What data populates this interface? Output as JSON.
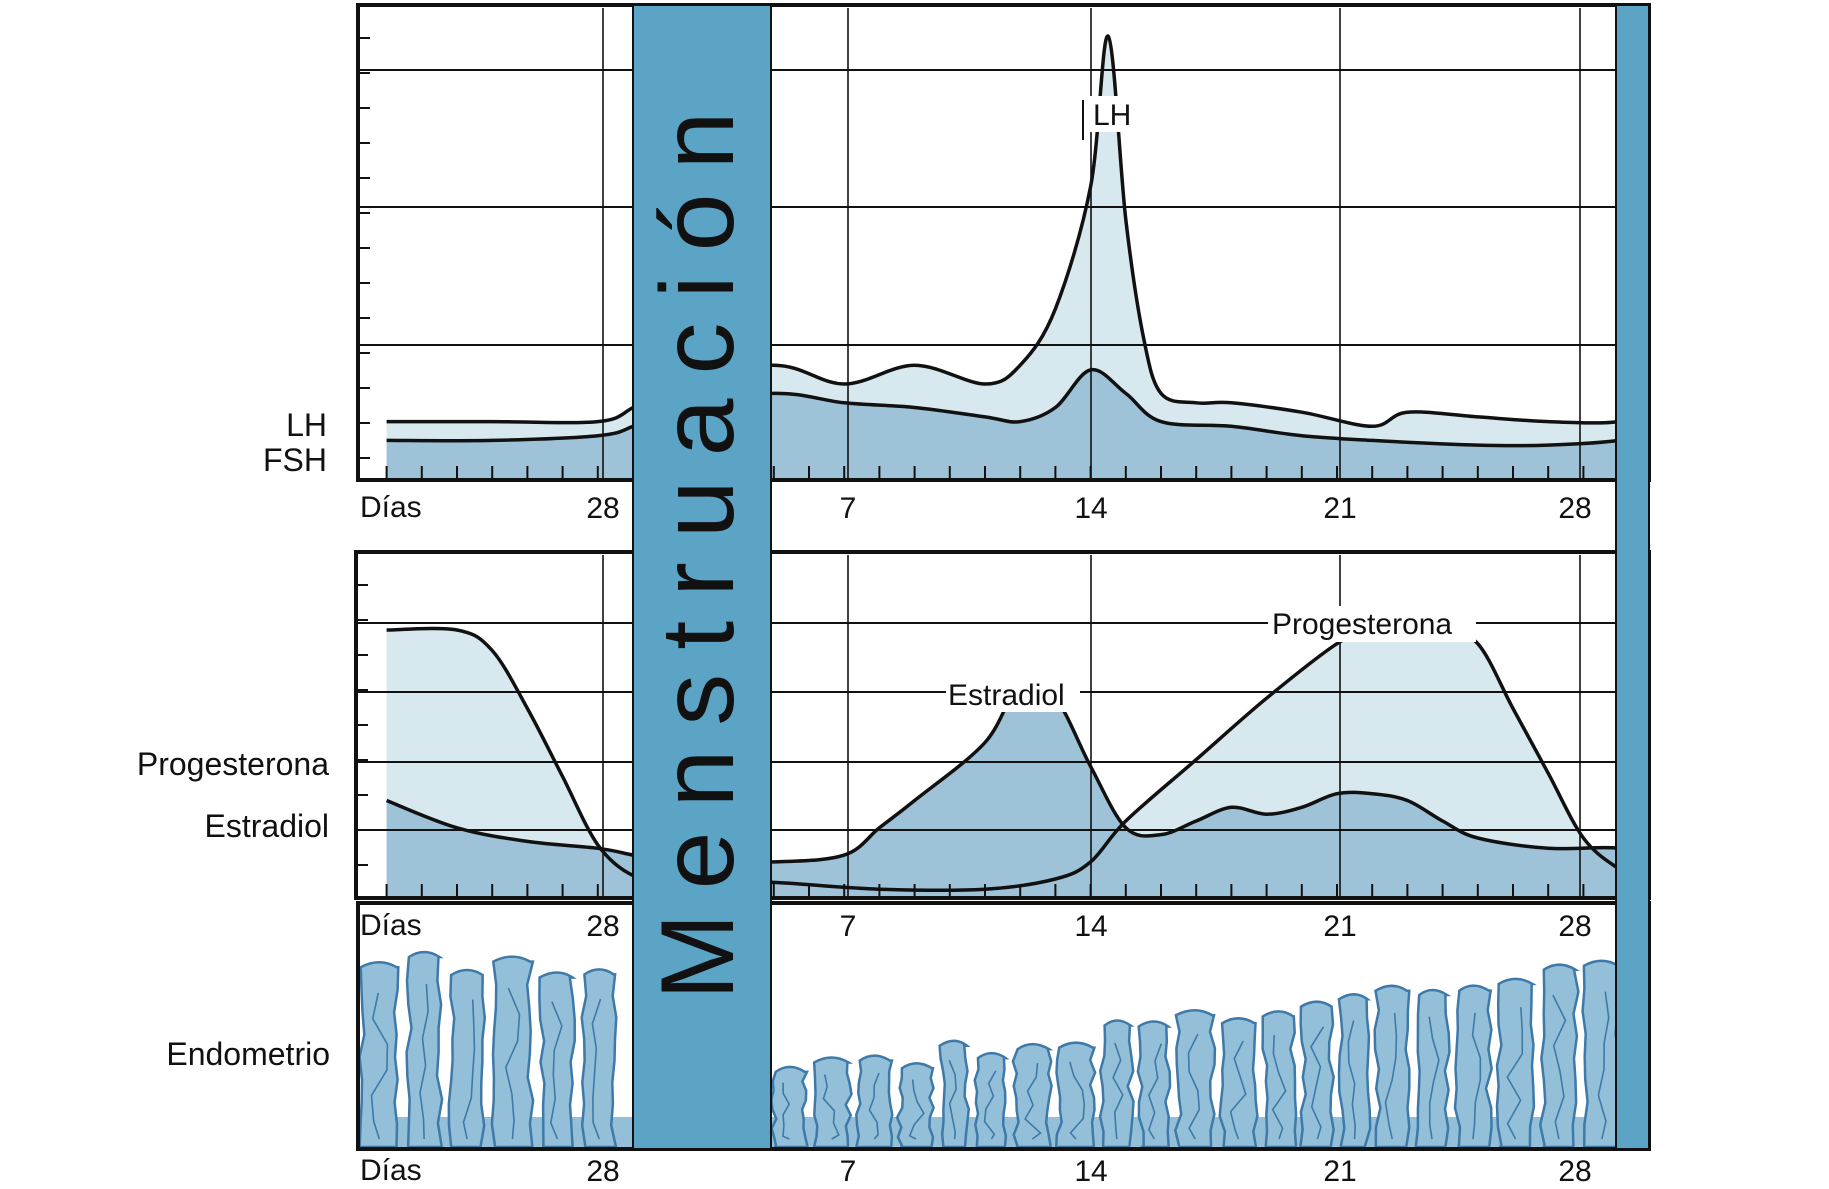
{
  "title": "",
  "menstruation_label": "Menstruación",
  "days_label": "Días",
  "day_ticks": [
    "28",
    "7",
    "14",
    "21",
    "28"
  ],
  "panels": {
    "gonadotropins": {
      "side_labels": [
        "LH",
        "FSH"
      ],
      "curve_labels": [
        "LH"
      ]
    },
    "ovarian_hormones": {
      "side_labels": [
        "Progesterona",
        "Estradiol"
      ],
      "curve_labels": [
        "Estradiol",
        "Progesterona"
      ]
    },
    "endometrium": {
      "side_label": "Endometrio"
    }
  },
  "colors": {
    "menstruation_band": "#5ba4c6",
    "light_fill": "#d8e8ef",
    "mid_fill": "#9ec3d8",
    "tissue_fill": "#93bfd9",
    "tissue_edge": "#3f79a8",
    "line": "#111111",
    "grid": "#111111"
  },
  "chart_data": [
    {
      "type": "area",
      "x_unit": "cycle day",
      "xticks": [
        "28",
        "7",
        "14",
        "21",
        "28"
      ],
      "series": [
        {
          "name": "LH",
          "x": [
            21,
            24,
            27,
            28,
            1,
            4,
            6,
            8,
            10,
            11,
            12,
            13,
            13.5,
            14,
            14.5,
            15,
            16,
            17,
            19,
            21,
            22,
            24,
            26,
            28,
            29
          ],
          "y": [
            0.12,
            0.12,
            0.12,
            0.15,
            0.2,
            0.24,
            0.2,
            0.24,
            0.2,
            0.24,
            0.36,
            0.62,
            0.94,
            0.55,
            0.3,
            0.18,
            0.16,
            0.16,
            0.14,
            0.11,
            0.14,
            0.13,
            0.12,
            0.12,
            0.15
          ]
        },
        {
          "name": "FSH",
          "x": [
            21,
            24,
            27,
            28,
            1,
            4,
            6,
            8,
            10,
            11,
            12,
            13,
            14,
            15,
            17,
            19,
            21,
            24,
            26,
            28,
            29
          ],
          "y": [
            0.08,
            0.08,
            0.09,
            0.11,
            0.15,
            0.18,
            0.16,
            0.15,
            0.13,
            0.12,
            0.15,
            0.23,
            0.18,
            0.12,
            0.11,
            0.09,
            0.08,
            0.07,
            0.07,
            0.08,
            0.1
          ]
        }
      ]
    },
    {
      "type": "area",
      "x_unit": "cycle day",
      "xticks": [
        "28",
        "7",
        "14",
        "21",
        "28"
      ],
      "series": [
        {
          "name": "Progesterona",
          "x": [
            21,
            23,
            24,
            25,
            26,
            27,
            28,
            1,
            4,
            7,
            10,
            12,
            13,
            14,
            16,
            18,
            20,
            21,
            22,
            23,
            24,
            25,
            26,
            27,
            28,
            29
          ],
          "y": [
            0.78,
            0.78,
            0.72,
            0.55,
            0.35,
            0.15,
            0.06,
            0.05,
            0.04,
            0.02,
            0.02,
            0.05,
            0.1,
            0.22,
            0.4,
            0.58,
            0.74,
            0.78,
            0.76,
            0.78,
            0.74,
            0.55,
            0.36,
            0.17,
            0.08,
            0.04
          ]
        },
        {
          "name": "Estradiol",
          "x": [
            21,
            23,
            25,
            27,
            28,
            1,
            4,
            6,
            7,
            8,
            10,
            11,
            12,
            13,
            14,
            15,
            16,
            17,
            18,
            19,
            20,
            21,
            22,
            23,
            24,
            26,
            28,
            29
          ],
          "y": [
            0.28,
            0.2,
            0.16,
            0.14,
            0.12,
            0.1,
            0.1,
            0.12,
            0.2,
            0.28,
            0.45,
            0.62,
            0.58,
            0.38,
            0.2,
            0.18,
            0.22,
            0.26,
            0.24,
            0.26,
            0.3,
            0.3,
            0.28,
            0.22,
            0.17,
            0.14,
            0.14,
            0.1
          ]
        }
      ]
    }
  ]
}
